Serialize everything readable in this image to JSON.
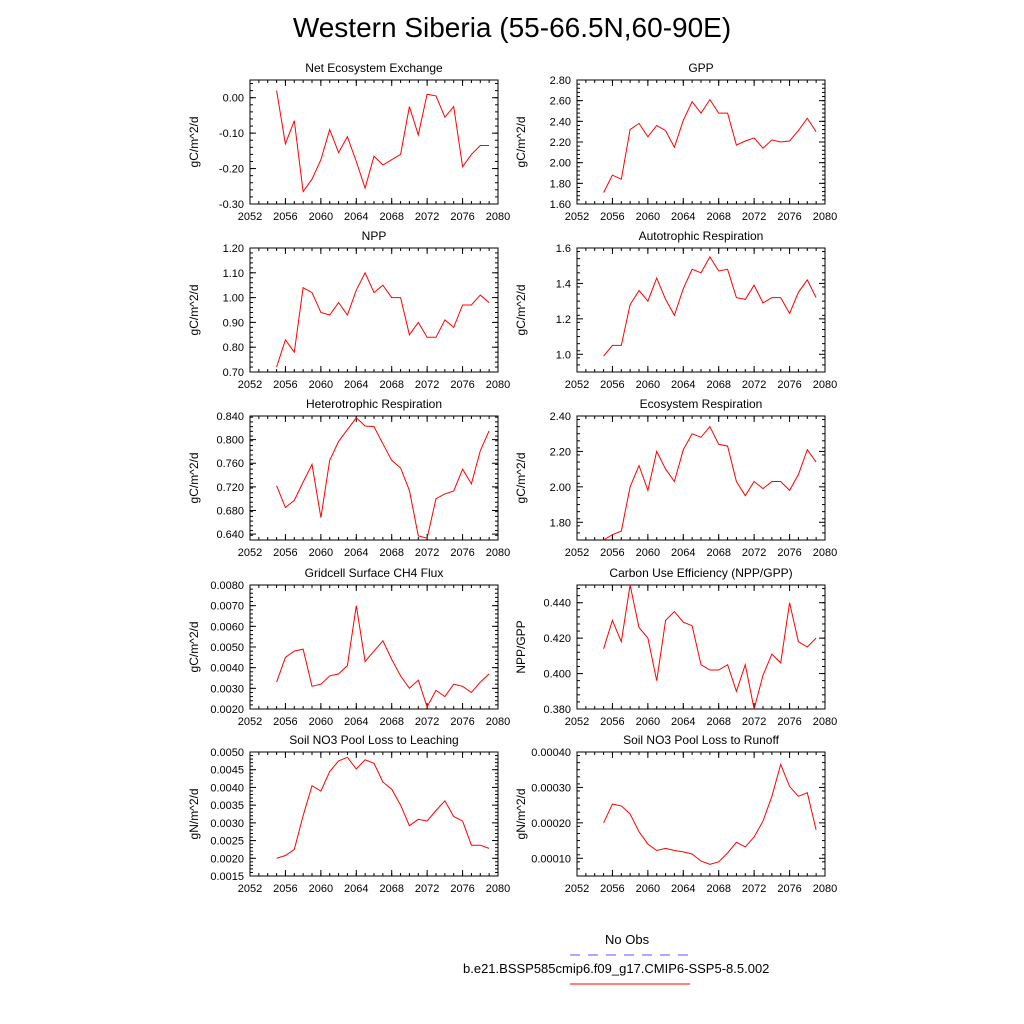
{
  "figure": {
    "title": "Western Siberia (55-66.5N,60-90E)",
    "legend": [
      {
        "label": "No Obs",
        "color": "#5555ff",
        "dash": true
      },
      {
        "label": "b.e21.BSSP585cmip6.f09_g17.CMIP6-SSP5-8.5.002",
        "color": "#ff0000",
        "dash": false
      }
    ]
  },
  "chart_data": [
    {
      "type": "line",
      "title": "Net Ecosystem Exchange",
      "ylabel": "gC/m^2/d",
      "xlim": [
        2052,
        2080
      ],
      "xticks": [
        "2052",
        "2056",
        "2060",
        "2064",
        "2068",
        "2072",
        "2076",
        "2080"
      ],
      "ylim": [
        -0.3,
        0.05
      ],
      "yticks": [
        "0.00",
        "-0.10",
        "-0.20",
        "-0.30"
      ],
      "x": [
        2055,
        2056,
        2057,
        2058,
        2059,
        2060,
        2061,
        2062,
        2063,
        2064,
        2065,
        2066,
        2067,
        2068,
        2069,
        2070,
        2071,
        2072,
        2073,
        2074,
        2075,
        2076,
        2077,
        2078,
        2079
      ],
      "series": [
        {
          "color": "#ff0000",
          "values": [
            0.02,
            -0.13,
            -0.065,
            -0.265,
            -0.23,
            -0.175,
            -0.09,
            -0.155,
            -0.11,
            -0.18,
            -0.255,
            -0.165,
            -0.19,
            -0.175,
            -0.16,
            -0.025,
            -0.105,
            0.01,
            0.005,
            -0.055,
            -0.025,
            -0.195,
            -0.16,
            -0.135,
            -0.135
          ]
        }
      ]
    },
    {
      "type": "line",
      "title": "GPP",
      "ylabel": "gC/m^2/d",
      "xlim": [
        2052,
        2080
      ],
      "xticks": [
        "2052",
        "2056",
        "2060",
        "2064",
        "2068",
        "2072",
        "2076",
        "2080"
      ],
      "ylim": [
        1.6,
        2.8
      ],
      "yticks": [
        "2.80",
        "2.60",
        "2.40",
        "2.20",
        "2.00",
        "1.80",
        "1.60"
      ],
      "x": [
        2055,
        2056,
        2057,
        2058,
        2059,
        2060,
        2061,
        2062,
        2063,
        2064,
        2065,
        2066,
        2067,
        2068,
        2069,
        2070,
        2071,
        2072,
        2073,
        2074,
        2075,
        2076,
        2077,
        2078,
        2079
      ],
      "series": [
        {
          "color": "#ff0000",
          "values": [
            1.71,
            1.88,
            1.84,
            2.32,
            2.38,
            2.25,
            2.36,
            2.31,
            2.15,
            2.41,
            2.59,
            2.48,
            2.61,
            2.48,
            2.48,
            2.17,
            2.21,
            2.24,
            2.14,
            2.22,
            2.2,
            2.21,
            2.31,
            2.43,
            2.3
          ]
        }
      ]
    },
    {
      "type": "line",
      "title": "NPP",
      "ylabel": "gC/m^2/d",
      "xlim": [
        2052,
        2080
      ],
      "xticks": [
        "2052",
        "2056",
        "2060",
        "2064",
        "2068",
        "2072",
        "2076",
        "2080"
      ],
      "ylim": [
        0.7,
        1.2
      ],
      "yticks": [
        "1.20",
        "1.10",
        "1.00",
        "0.90",
        "0.80",
        "0.70"
      ],
      "x": [
        2055,
        2056,
        2057,
        2058,
        2059,
        2060,
        2061,
        2062,
        2063,
        2064,
        2065,
        2066,
        2067,
        2068,
        2069,
        2070,
        2071,
        2072,
        2073,
        2074,
        2075,
        2076,
        2077,
        2078,
        2079
      ],
      "series": [
        {
          "color": "#ff0000",
          "values": [
            0.72,
            0.83,
            0.78,
            1.04,
            1.02,
            0.94,
            0.93,
            0.98,
            0.93,
            1.03,
            1.1,
            1.02,
            1.05,
            1.0,
            1.0,
            0.85,
            0.9,
            0.84,
            0.84,
            0.91,
            0.88,
            0.97,
            0.97,
            1.01,
            0.98
          ]
        }
      ]
    },
    {
      "type": "line",
      "title": "Autotrophic Respiration",
      "ylabel": "gC/m^2/d",
      "xlim": [
        2052,
        2080
      ],
      "xticks": [
        "2052",
        "2056",
        "2060",
        "2064",
        "2068",
        "2072",
        "2076",
        "2080"
      ],
      "ylim": [
        0.9,
        1.6
      ],
      "yticks": [
        "1.6",
        "1.4",
        "1.2",
        "1.0"
      ],
      "x": [
        2055,
        2056,
        2057,
        2058,
        2059,
        2060,
        2061,
        2062,
        2063,
        2064,
        2065,
        2066,
        2067,
        2068,
        2069,
        2070,
        2071,
        2072,
        2073,
        2074,
        2075,
        2076,
        2077,
        2078,
        2079
      ],
      "series": [
        {
          "color": "#ff0000",
          "values": [
            0.99,
            1.05,
            1.05,
            1.28,
            1.36,
            1.3,
            1.43,
            1.31,
            1.22,
            1.37,
            1.48,
            1.46,
            1.55,
            1.47,
            1.48,
            1.32,
            1.31,
            1.39,
            1.29,
            1.32,
            1.32,
            1.23,
            1.35,
            1.42,
            1.32
          ]
        }
      ]
    },
    {
      "type": "line",
      "title": "Heterotrophic Respiration",
      "ylabel": "gC/m^2/d",
      "xlim": [
        2052,
        2080
      ],
      "xticks": [
        "2052",
        "2056",
        "2060",
        "2064",
        "2068",
        "2072",
        "2076",
        "2080"
      ],
      "ylim": [
        0.63,
        0.84
      ],
      "yticks": [
        "0.840",
        "0.800",
        "0.760",
        "0.720",
        "0.680",
        "0.640"
      ],
      "x": [
        2055,
        2056,
        2057,
        2058,
        2059,
        2060,
        2061,
        2062,
        2063,
        2064,
        2065,
        2066,
        2067,
        2068,
        2069,
        2070,
        2071,
        2072,
        2073,
        2074,
        2075,
        2076,
        2077,
        2078,
        2079
      ],
      "series": [
        {
          "color": "#ff0000",
          "values": [
            0.722,
            0.685,
            0.697,
            0.728,
            0.758,
            0.668,
            0.765,
            0.797,
            0.817,
            0.837,
            0.823,
            0.822,
            0.793,
            0.765,
            0.752,
            0.714,
            0.637,
            0.633,
            0.7,
            0.708,
            0.713,
            0.75,
            0.725,
            0.781,
            0.815
          ]
        }
      ]
    },
    {
      "type": "line",
      "title": "Ecosystem Respiration",
      "ylabel": "gC/m^2/d",
      "xlim": [
        2052,
        2080
      ],
      "xticks": [
        "2052",
        "2056",
        "2060",
        "2064",
        "2068",
        "2072",
        "2076",
        "2080"
      ],
      "ylim": [
        1.7,
        2.4
      ],
      "yticks": [
        "2.40",
        "2.20",
        "2.00",
        "1.80"
      ],
      "x": [
        2055,
        2056,
        2057,
        2058,
        2059,
        2060,
        2061,
        2062,
        2063,
        2064,
        2065,
        2066,
        2067,
        2068,
        2069,
        2070,
        2071,
        2072,
        2073,
        2074,
        2075,
        2076,
        2077,
        2078,
        2079
      ],
      "series": [
        {
          "color": "#ff0000",
          "values": [
            1.7,
            1.73,
            1.75,
            2.0,
            2.12,
            1.98,
            2.2,
            2.1,
            2.03,
            2.21,
            2.3,
            2.28,
            2.34,
            2.24,
            2.23,
            2.03,
            1.95,
            2.03,
            1.99,
            2.03,
            2.03,
            1.98,
            2.07,
            2.21,
            2.14
          ]
        }
      ]
    },
    {
      "type": "line",
      "title": "Gridcell Surface CH4 Flux",
      "ylabel": "gC/m^2/d",
      "xlim": [
        2052,
        2080
      ],
      "xticks": [
        "2052",
        "2056",
        "2060",
        "2064",
        "2068",
        "2072",
        "2076",
        "2080"
      ],
      "ylim": [
        0.002,
        0.008
      ],
      "yticks": [
        "0.0080",
        "0.0070",
        "0.0060",
        "0.0050",
        "0.0040",
        "0.0030",
        "0.0020"
      ],
      "x": [
        2055,
        2056,
        2057,
        2058,
        2059,
        2060,
        2061,
        2062,
        2063,
        2064,
        2065,
        2066,
        2067,
        2068,
        2069,
        2070,
        2071,
        2072,
        2073,
        2074,
        2075,
        2076,
        2077,
        2078,
        2079
      ],
      "series": [
        {
          "color": "#ff0000",
          "values": [
            0.0033,
            0.0045,
            0.0048,
            0.0049,
            0.0031,
            0.0032,
            0.0036,
            0.0037,
            0.0041,
            0.007,
            0.0043,
            0.0048,
            0.0053,
            0.0044,
            0.0036,
            0.003,
            0.0034,
            0.0021,
            0.0029,
            0.0026,
            0.0032,
            0.0031,
            0.0028,
            0.0033,
            0.0037
          ]
        }
      ]
    },
    {
      "type": "line",
      "title": "Carbon Use Efficiency (NPP/GPP)",
      "ylabel": "NPP/GPP",
      "xlim": [
        2052,
        2080
      ],
      "xticks": [
        "2052",
        "2056",
        "2060",
        "2064",
        "2068",
        "2072",
        "2076",
        "2080"
      ],
      "ylim": [
        0.38,
        0.45
      ],
      "yticks": [
        "0.440",
        "0.420",
        "0.400",
        "0.380"
      ],
      "x": [
        2055,
        2056,
        2057,
        2058,
        2059,
        2060,
        2061,
        2062,
        2063,
        2064,
        2065,
        2066,
        2067,
        2068,
        2069,
        2070,
        2071,
        2072,
        2073,
        2074,
        2075,
        2076,
        2077,
        2078,
        2079
      ],
      "series": [
        {
          "color": "#ff0000",
          "values": [
            0.414,
            0.43,
            0.418,
            0.45,
            0.426,
            0.42,
            0.396,
            0.43,
            0.435,
            0.429,
            0.427,
            0.405,
            0.402,
            0.402,
            0.405,
            0.39,
            0.405,
            0.38,
            0.399,
            0.411,
            0.406,
            0.44,
            0.418,
            0.415,
            0.42
          ]
        }
      ]
    },
    {
      "type": "line",
      "title": "Soil NO3 Pool Loss to Leaching",
      "ylabel": "gN/m^2/d",
      "xlim": [
        2052,
        2080
      ],
      "xticks": [
        "2052",
        "2056",
        "2060",
        "2064",
        "2068",
        "2072",
        "2076",
        "2080"
      ],
      "ylim": [
        0.0015,
        0.005
      ],
      "yticks": [
        "0.0050",
        "0.0045",
        "0.0040",
        "0.0035",
        "0.0030",
        "0.0025",
        "0.0020",
        "0.0015"
      ],
      "x": [
        2055,
        2056,
        2057,
        2058,
        2059,
        2060,
        2061,
        2062,
        2063,
        2064,
        2065,
        2066,
        2067,
        2068,
        2069,
        2070,
        2071,
        2072,
        2073,
        2074,
        2075,
        2076,
        2077,
        2078,
        2079
      ],
      "series": [
        {
          "color": "#ff0000",
          "values": [
            0.002,
            0.00208,
            0.00225,
            0.0032,
            0.00405,
            0.0039,
            0.00445,
            0.00475,
            0.00485,
            0.00452,
            0.00478,
            0.00468,
            0.00415,
            0.00395,
            0.0035,
            0.00292,
            0.0031,
            0.00305,
            0.00335,
            0.00362,
            0.00318,
            0.00305,
            0.00237,
            0.00237,
            0.00228
          ]
        }
      ]
    },
    {
      "type": "line",
      "title": "Soil NO3 Pool Loss to Runoff",
      "ylabel": "gN/m^2/d",
      "xlim": [
        2052,
        2080
      ],
      "xticks": [
        "2052",
        "2056",
        "2060",
        "2064",
        "2068",
        "2072",
        "2076",
        "2080"
      ],
      "ylim": [
        5e-05,
        0.0004
      ],
      "yticks": [
        "0.00040",
        "0.00030",
        "0.00020",
        "0.00010"
      ],
      "x": [
        2055,
        2056,
        2057,
        2058,
        2059,
        2060,
        2061,
        2062,
        2063,
        2064,
        2065,
        2066,
        2067,
        2068,
        2069,
        2070,
        2071,
        2072,
        2073,
        2074,
        2075,
        2076,
        2077,
        2078,
        2079
      ],
      "series": [
        {
          "color": "#ff0000",
          "values": [
            0.0002,
            0.000253,
            0.000248,
            0.000225,
            0.000175,
            0.00014,
            0.000122,
            0.000128,
            0.000122,
            0.000118,
            0.000112,
            9.2e-05,
            8.3e-05,
            9e-05,
            0.000115,
            0.000145,
            0.000132,
            0.00016,
            0.000205,
            0.000275,
            0.000365,
            0.000303,
            0.000275,
            0.000285,
            0.00018
          ]
        }
      ]
    }
  ]
}
